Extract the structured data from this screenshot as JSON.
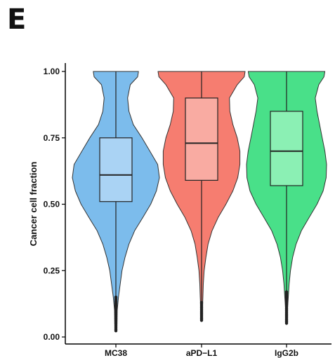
{
  "panel_label": "E",
  "chart_data": {
    "type": "violin",
    "title": "",
    "xlabel": "",
    "ylabel": "Cancer cell fraction",
    "ylim": [
      0,
      1
    ],
    "yticks": [
      0.0,
      0.25,
      0.5,
      0.75,
      1.0
    ],
    "ytick_labels": [
      "0.00",
      "0.25",
      "0.50",
      "0.75",
      "1.00"
    ],
    "grid": false,
    "legend": "none",
    "categories": [
      "MC38",
      "aPD−L1",
      "IgG2b"
    ],
    "series": [
      {
        "category": "MC38",
        "violin_color": "#7cbcec",
        "box_color": "#aad3f4",
        "min": 0.02,
        "q1": 0.51,
        "median": 0.61,
        "q3": 0.75,
        "max": 1.0,
        "whisker_low": 0.15,
        "density": [
          [
            0.02,
            0.01
          ],
          [
            0.05,
            0.025
          ],
          [
            0.1,
            0.03
          ],
          [
            0.15,
            0.06
          ],
          [
            0.2,
            0.1
          ],
          [
            0.25,
            0.14
          ],
          [
            0.3,
            0.21
          ],
          [
            0.35,
            0.3
          ],
          [
            0.4,
            0.43
          ],
          [
            0.45,
            0.62
          ],
          [
            0.5,
            0.8
          ],
          [
            0.55,
            0.93
          ],
          [
            0.6,
            1.0
          ],
          [
            0.65,
            0.96
          ],
          [
            0.7,
            0.78
          ],
          [
            0.75,
            0.6
          ],
          [
            0.8,
            0.4
          ],
          [
            0.85,
            0.3
          ],
          [
            0.9,
            0.27
          ],
          [
            0.95,
            0.33
          ],
          [
            0.98,
            0.5
          ],
          [
            1.0,
            0.52
          ]
        ]
      },
      {
        "category": "aPD−L1",
        "violin_color": "#f67d70",
        "box_color": "#f9aba2",
        "min": 0.06,
        "q1": 0.59,
        "median": 0.73,
        "q3": 0.9,
        "max": 1.0,
        "whisker_low": 0.13,
        "density": [
          [
            0.06,
            0.01
          ],
          [
            0.1,
            0.02
          ],
          [
            0.15,
            0.03
          ],
          [
            0.2,
            0.04
          ],
          [
            0.25,
            0.06
          ],
          [
            0.3,
            0.1
          ],
          [
            0.35,
            0.15
          ],
          [
            0.4,
            0.24
          ],
          [
            0.45,
            0.38
          ],
          [
            0.5,
            0.56
          ],
          [
            0.55,
            0.72
          ],
          [
            0.6,
            0.83
          ],
          [
            0.65,
            0.88
          ],
          [
            0.7,
            0.88
          ],
          [
            0.75,
            0.82
          ],
          [
            0.8,
            0.72
          ],
          [
            0.85,
            0.65
          ],
          [
            0.9,
            0.64
          ],
          [
            0.95,
            0.82
          ],
          [
            0.98,
            0.98
          ],
          [
            1.0,
            1.0
          ]
        ]
      },
      {
        "category": "IgG2b",
        "violin_color": "#49e089",
        "box_color": "#8bf0b4",
        "min": 0.05,
        "q1": 0.57,
        "median": 0.7,
        "q3": 0.85,
        "max": 1.0,
        "whisker_low": 0.17,
        "density": [
          [
            0.05,
            0.01
          ],
          [
            0.1,
            0.02
          ],
          [
            0.15,
            0.04
          ],
          [
            0.2,
            0.06
          ],
          [
            0.25,
            0.09
          ],
          [
            0.3,
            0.14
          ],
          [
            0.35,
            0.22
          ],
          [
            0.4,
            0.34
          ],
          [
            0.45,
            0.52
          ],
          [
            0.5,
            0.7
          ],
          [
            0.55,
            0.84
          ],
          [
            0.6,
            0.91
          ],
          [
            0.65,
            0.92
          ],
          [
            0.7,
            0.88
          ],
          [
            0.75,
            0.82
          ],
          [
            0.8,
            0.76
          ],
          [
            0.85,
            0.7
          ],
          [
            0.9,
            0.66
          ],
          [
            0.95,
            0.74
          ],
          [
            0.98,
            0.86
          ],
          [
            1.0,
            0.88
          ]
        ]
      }
    ]
  }
}
